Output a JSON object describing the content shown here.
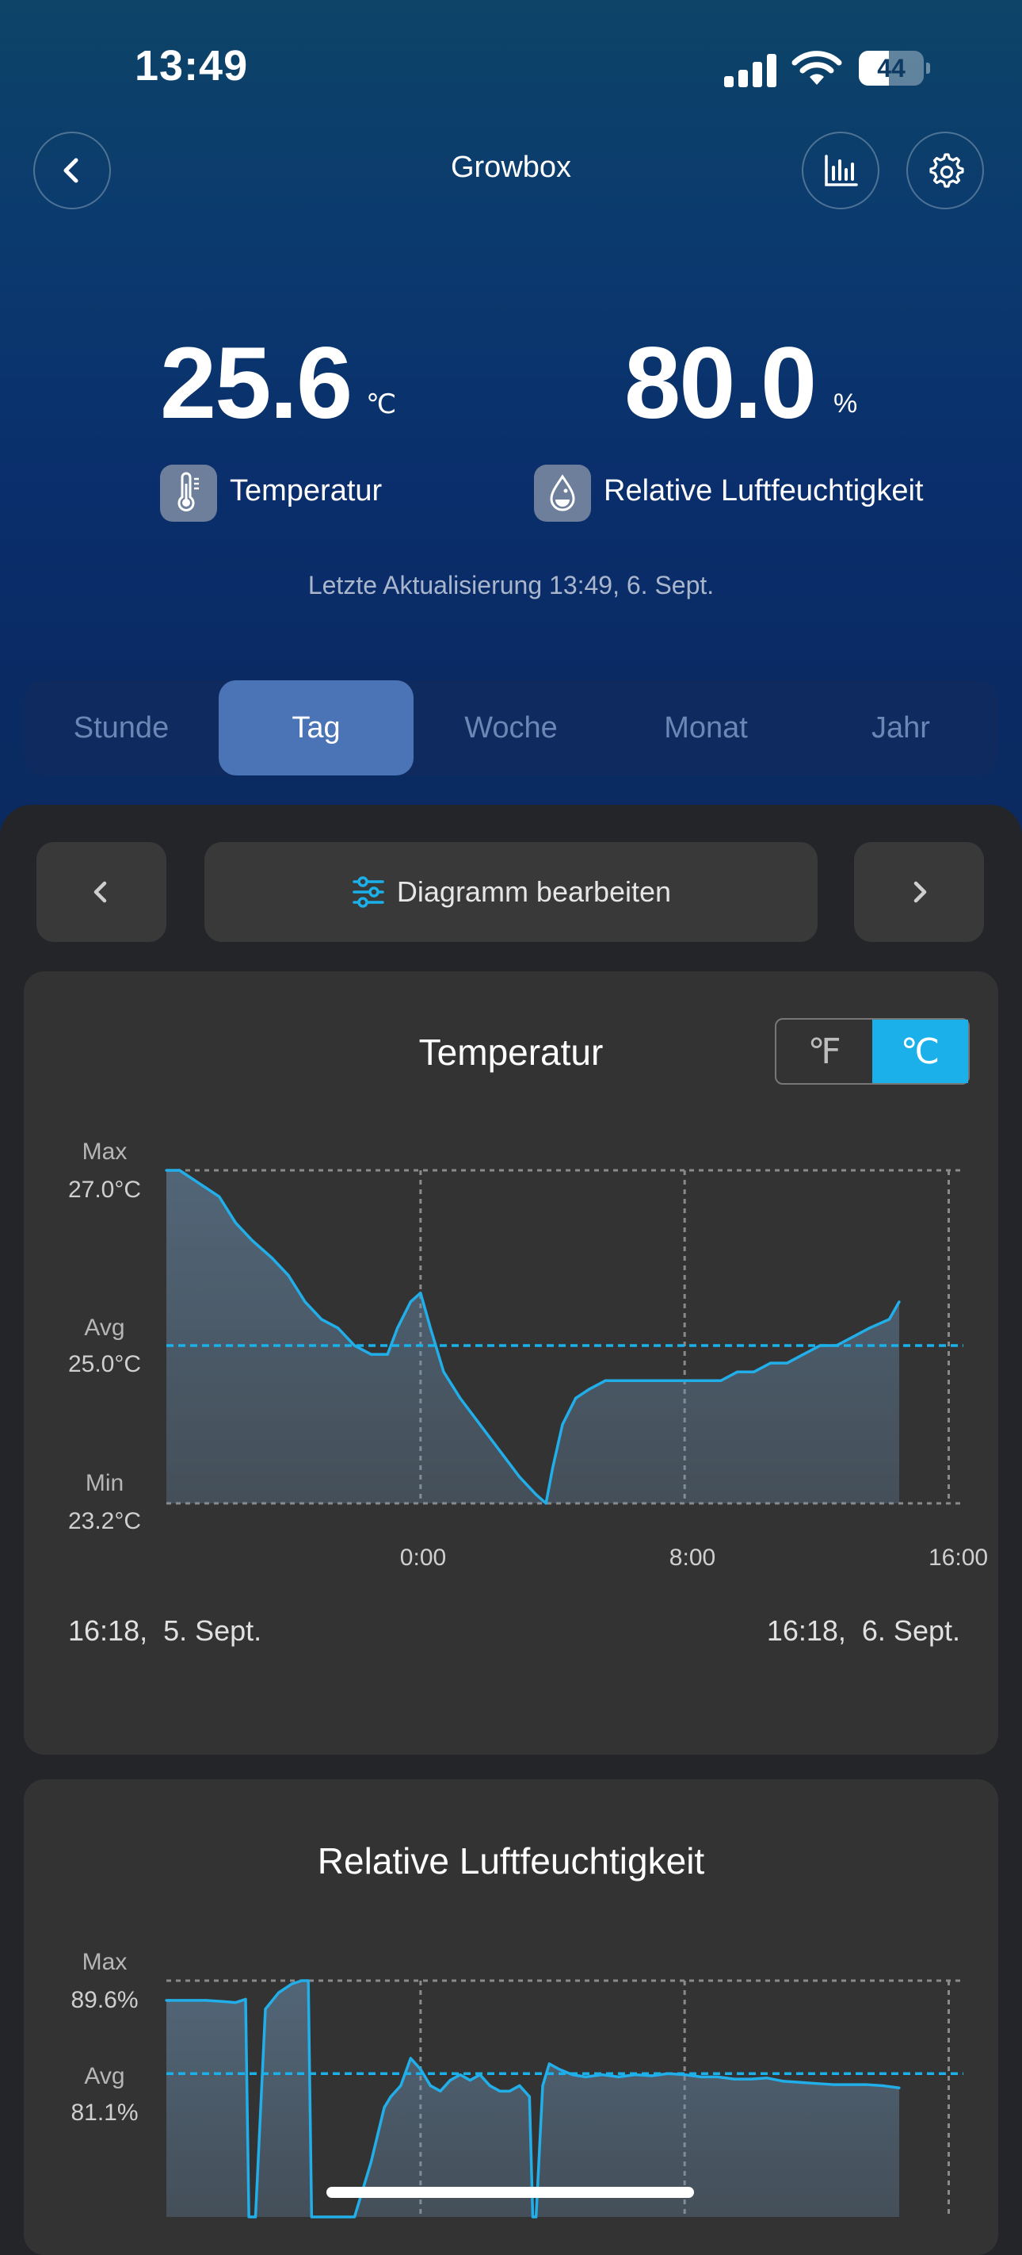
{
  "status_bar": {
    "time": "13:49",
    "battery": "44"
  },
  "header": {
    "title": "Growbox"
  },
  "icons": {
    "back": "chevron-left-icon",
    "stats": "bar-chart-icon",
    "settings": "gear-icon",
    "temperature": "thermometer-icon",
    "humidity": "water-drop-icon",
    "edit": "sliders-icon"
  },
  "readings": {
    "temperature": {
      "value": "25.6",
      "unit": "℃",
      "label": "Temperatur"
    },
    "humidity": {
      "value": "80.0",
      "unit": "%",
      "label": "Relative Luftfeuchtigkeit"
    }
  },
  "last_update": "Letzte Aktualisierung 13:49,  6. Sept.",
  "tabs": [
    {
      "label": "Stunde",
      "active": false
    },
    {
      "label": "Tag",
      "active": true
    },
    {
      "label": "Woche",
      "active": false
    },
    {
      "label": "Monat",
      "active": false
    },
    {
      "label": "Jahr",
      "active": false
    }
  ],
  "controls": {
    "edit_label": "Diagramm bearbeiten"
  },
  "temperature_card": {
    "title": "Temperatur",
    "unit_options": [
      "℉",
      "℃"
    ],
    "selected_unit": "℃",
    "range_start": "16:18,  5. Sept.",
    "range_end": "16:18,  6. Sept."
  },
  "humidity_card": {
    "title": "Relative Luftfeuchtigkeit"
  },
  "colors": {
    "accent": "#1bb0ea",
    "line": "#22aee8",
    "card": "#333333",
    "background": "#242528"
  },
  "chart_data": [
    {
      "type": "area",
      "title": "Temperatur",
      "stats": [
        {
          "label": "Max",
          "value": "27.0°C"
        },
        {
          "label": "Avg",
          "value": "25.0°C"
        },
        {
          "label": "Min",
          "value": "23.2°C"
        }
      ],
      "avg": 25.0,
      "ylim": [
        23.2,
        27.0
      ],
      "xlim": [
        -7.7,
        16.3
      ],
      "x_ticks": [
        {
          "x": 0,
          "label": "0:00"
        },
        {
          "x": 8,
          "label": "8:00"
        },
        {
          "x": 16,
          "label": "16:00"
        }
      ],
      "x": [
        -7.7,
        -7.3,
        -6.9,
        -6.5,
        -6.1,
        -5.6,
        -5.1,
        -4.5,
        -4.0,
        -3.5,
        -3.0,
        -2.5,
        -2.0,
        -1.5,
        -1.0,
        -0.7,
        -0.3,
        0.0,
        0.3,
        0.7,
        1.2,
        1.8,
        2.4,
        3.0,
        3.5,
        3.8,
        4.0,
        4.3,
        4.7,
        5.1,
        5.6,
        6.1,
        6.6,
        7.1,
        7.6,
        8.1,
        8.6,
        9.1,
        9.6,
        10.1,
        10.6,
        11.1,
        11.6,
        12.1,
        12.6,
        13.1,
        13.6,
        14.2,
        14.5
      ],
      "values": [
        27.0,
        27.0,
        26.9,
        26.8,
        26.7,
        26.4,
        26.2,
        26.0,
        25.8,
        25.5,
        25.3,
        25.2,
        25.0,
        24.9,
        24.9,
        25.2,
        25.5,
        25.6,
        25.2,
        24.7,
        24.4,
        24.1,
        23.8,
        23.5,
        23.3,
        23.2,
        23.6,
        24.1,
        24.4,
        24.5,
        24.6,
        24.6,
        24.6,
        24.6,
        24.6,
        24.6,
        24.6,
        24.6,
        24.7,
        24.7,
        24.8,
        24.8,
        24.9,
        25.0,
        25.0,
        25.1,
        25.2,
        25.3,
        25.5
      ]
    },
    {
      "type": "area",
      "title": "Relative Luftfeuchtigkeit",
      "stats": [
        {
          "label": "Max",
          "value": "89.6%"
        },
        {
          "label": "Avg",
          "value": "81.1%"
        }
      ],
      "avg": 81.1,
      "ylim": [
        68.0,
        89.6
      ],
      "xlim": [
        -7.7,
        16.3
      ],
      "x": [
        -7.7,
        -7.0,
        -6.5,
        -6.0,
        -5.6,
        -5.3,
        -5.2,
        -5.0,
        -4.7,
        -4.3,
        -3.9,
        -3.6,
        -3.4,
        -3.3,
        -2.9,
        -2.5,
        -2.0,
        -1.5,
        -1.1,
        -0.9,
        -0.6,
        -0.3,
        0.0,
        0.3,
        0.6,
        0.9,
        1.2,
        1.5,
        1.8,
        2.1,
        2.4,
        2.7,
        3.0,
        3.3,
        3.4,
        3.5,
        3.7,
        3.9,
        4.2,
        4.6,
        5.0,
        5.5,
        6.0,
        6.5,
        7.0,
        7.5,
        8.0,
        8.5,
        9.0,
        9.5,
        10.0,
        10.5,
        11.0,
        11.5,
        12.0,
        12.5,
        13.0,
        13.5,
        14.0,
        14.5
      ],
      "values": [
        87.8,
        87.8,
        87.8,
        87.7,
        87.6,
        87.9,
        68.0,
        68.0,
        87.0,
        88.5,
        89.3,
        89.6,
        89.6,
        68.0,
        68.0,
        68.0,
        68.0,
        73.0,
        78.0,
        79.0,
        80.0,
        82.5,
        81.5,
        80.0,
        79.5,
        80.5,
        81.0,
        80.5,
        81.0,
        80.0,
        79.5,
        79.5,
        80.0,
        79.0,
        68.0,
        68.0,
        80.0,
        82.0,
        81.5,
        81.0,
        80.8,
        81.0,
        80.8,
        81.0,
        80.9,
        81.1,
        81.0,
        80.8,
        80.8,
        80.6,
        80.6,
        80.7,
        80.4,
        80.3,
        80.2,
        80.1,
        80.1,
        80.1,
        80.0,
        79.8
      ]
    }
  ]
}
